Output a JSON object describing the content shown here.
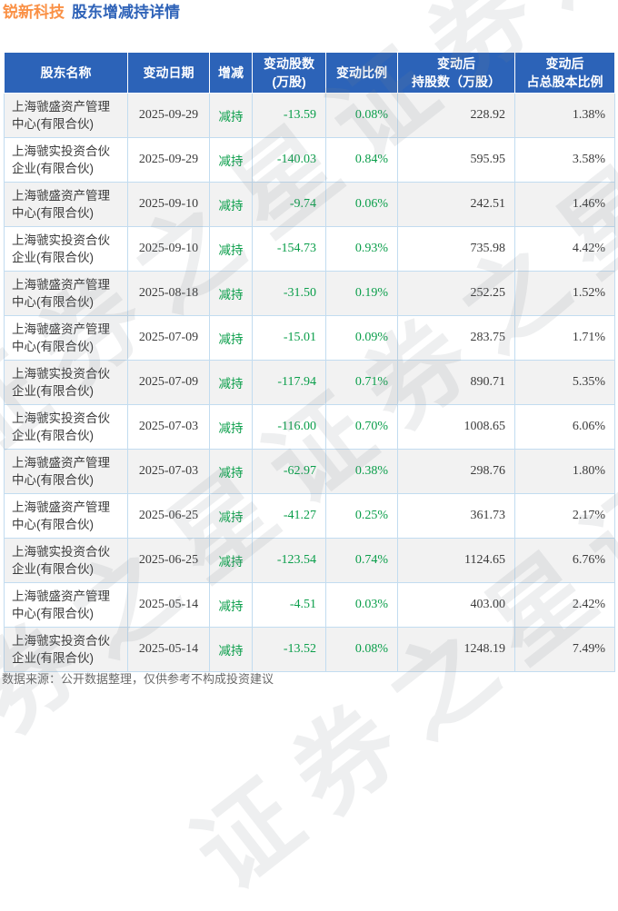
{
  "page": {
    "title_company": "锐新科技",
    "title_detail": "股东增减持详情",
    "footer": "数据来源：公开数据整理，仅供参考不构成投资建议",
    "watermark": "证券之星"
  },
  "colors": {
    "accent_orange": "#fa9146",
    "title_blue": "#2f63b8",
    "header_bg": "#2c63b8",
    "decrease_green": "#0a9e4a",
    "row_alt_bg": "#f2f2f2",
    "border_light_blue": "#c2dcf0",
    "body_text": "#3b3b3b",
    "footer_text": "#6a6a6a"
  },
  "chart_data": {
    "type": "table",
    "title": "锐新科技 股东增减持详情",
    "columns": [
      "股东名称",
      "变动日期",
      "增减",
      "变动股数\n(万股)",
      "变动比例",
      "变动后\n持股数（万股）",
      "变动后\n占总股本比例"
    ],
    "rows": [
      [
        "上海虢盛资产管理中心(有限合伙)",
        "2025-09-29",
        "减持",
        "-13.59",
        "0.08%",
        "228.92",
        "1.38%"
      ],
      [
        "上海虢实投资合伙企业(有限合伙)",
        "2025-09-29",
        "减持",
        "-140.03",
        "0.84%",
        "595.95",
        "3.58%"
      ],
      [
        "上海虢盛资产管理中心(有限合伙)",
        "2025-09-10",
        "减持",
        "-9.74",
        "0.06%",
        "242.51",
        "1.46%"
      ],
      [
        "上海虢实投资合伙企业(有限合伙)",
        "2025-09-10",
        "减持",
        "-154.73",
        "0.93%",
        "735.98",
        "4.42%"
      ],
      [
        "上海虢盛资产管理中心(有限合伙)",
        "2025-08-18",
        "减持",
        "-31.50",
        "0.19%",
        "252.25",
        "1.52%"
      ],
      [
        "上海虢盛资产管理中心(有限合伙)",
        "2025-07-09",
        "减持",
        "-15.01",
        "0.09%",
        "283.75",
        "1.71%"
      ],
      [
        "上海虢实投资合伙企业(有限合伙)",
        "2025-07-09",
        "减持",
        "-117.94",
        "0.71%",
        "890.71",
        "5.35%"
      ],
      [
        "上海虢实投资合伙企业(有限合伙)",
        "2025-07-03",
        "减持",
        "-116.00",
        "0.70%",
        "1008.65",
        "6.06%"
      ],
      [
        "上海虢盛资产管理中心(有限合伙)",
        "2025-07-03",
        "减持",
        "-62.97",
        "0.38%",
        "298.76",
        "1.80%"
      ],
      [
        "上海虢盛资产管理中心(有限合伙)",
        "2025-06-25",
        "减持",
        "-41.27",
        "0.25%",
        "361.73",
        "2.17%"
      ],
      [
        "上海虢实投资合伙企业(有限合伙)",
        "2025-06-25",
        "减持",
        "-123.54",
        "0.74%",
        "1124.65",
        "6.76%"
      ],
      [
        "上海虢盛资产管理中心(有限合伙)",
        "2025-05-14",
        "减持",
        "-4.51",
        "0.03%",
        "403.00",
        "2.42%"
      ],
      [
        "上海虢实投资合伙企业(有限合伙)",
        "2025-05-14",
        "减持",
        "-13.52",
        "0.08%",
        "1248.19",
        "7.49%"
      ]
    ]
  }
}
